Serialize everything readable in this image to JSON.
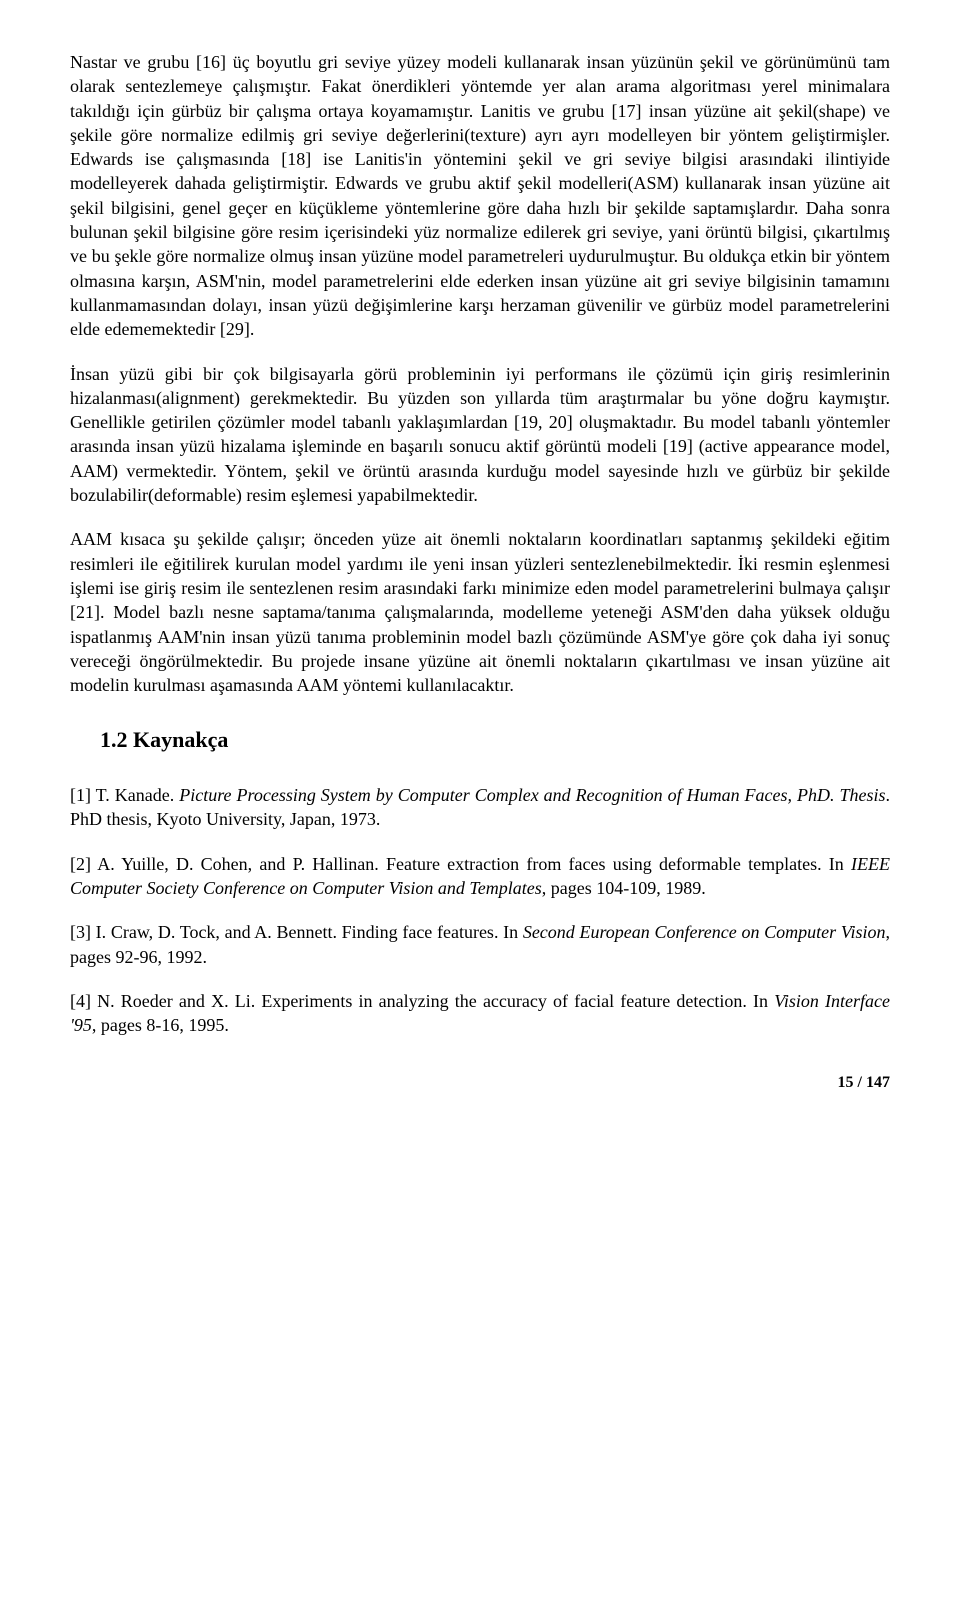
{
  "paragraphs": {
    "p1": "Nastar ve grubu [16] üç boyutlu gri seviye yüzey modeli kullanarak insan yüzünün şekil ve görünümünü tam olarak sentezlemeye çalışmıştır. Fakat önerdikleri yöntemde yer alan arama algoritması yerel minimalara takıldığı için gürbüz bir çalışma ortaya koyamamıştır. Lanitis ve grubu [17] insan yüzüne ait şekil(shape) ve şekile göre normalize edilmiş gri seviye değerlerini(texture) ayrı ayrı modelleyen bir yöntem geliştirmişler. Edwards ise çalışmasında [18] ise Lanitis'in yöntemini şekil ve gri seviye bilgisi arasındaki ilintiyide modelleyerek dahada geliştirmiştir. Edwards ve grubu aktif şekil modelleri(ASM) kullanarak insan yüzüne ait şekil bilgisini, genel geçer en küçükleme yöntemlerine göre daha hızlı bir şekilde saptamışlardır. Daha sonra bulunan şekil bilgisine göre resim içerisindeki yüz normalize edilerek gri seviye, yani örüntü bilgisi, çıkartılmış ve bu şekle göre normalize olmuş insan yüzüne model parametreleri uydurulmuştur. Bu oldukça etkin bir yöntem olmasına karşın, ASM'nin, model parametrelerini elde ederken insan yüzüne ait gri seviye bilgisinin tamamını kullanmamasından dolayı, insan yüzü değişimlerine karşı herzaman güvenilir ve gürbüz model parametrelerini elde edememektedir [29].",
    "p2": "İnsan yüzü gibi bir çok bilgisayarla görü probleminin iyi performans ile çözümü için giriş resimlerinin hizalanması(alignment) gerekmektedir. Bu yüzden son yıllarda tüm araştırmalar bu yöne doğru kaymıştır. Genellikle getirilen çözümler model tabanlı yaklaşımlardan [19, 20] oluşmaktadır. Bu model tabanlı yöntemler arasında insan yüzü hizalama işleminde en başarılı sonucu aktif görüntü modeli [19] (active appearance model, AAM) vermektedir. Yöntem, şekil ve örüntü arasında kurduğu model sayesinde hızlı ve gürbüz bir şekilde bozulabilir(deformable) resim eşlemesi yapabilmektedir.",
    "p3": "AAM kısaca şu şekilde çalışır; önceden yüze ait önemli noktaların koordinatları saptanmış şekildeki eğitim resimleri ile eğitilirek kurulan model yardımı ile yeni insan yüzleri sentezlenebilmektedir. İki resmin eşlenmesi işlemi ise giriş resim ile sentezlenen resim arasındaki farkı minimize eden model parametrelerini bulmaya çalışır [21]. Model bazlı nesne saptama/tanıma çalışmalarında, modelleme yeteneği ASM'den daha yüksek olduğu ispatlanmış AAM'nin insan yüzü tanıma probleminin model bazlı çözümünde ASM'ye göre çok daha iyi sonuç vereceği öngörülmektedir. Bu projede insane yüzüne ait önemli noktaların çıkartılması ve insan yüzüne ait modelin kurulması aşamasında AAM yöntemi kullanılacaktır."
  },
  "heading": "1.2  Kaynakça",
  "refs": {
    "r1_a": "[1] T. Kanade. ",
    "r1_i": "Picture Processing System by Computer Complex and Recognition of Human Faces, PhD. Thesis",
    "r1_b": ". PhD thesis, Kyoto University, Japan, 1973.",
    "r2_a": "[2] A. Yuille, D. Cohen, and P. Hallinan. Feature extraction from faces using deformable templates. In ",
    "r2_i": "IEEE Computer Society Conference on Computer Vision and Templates",
    "r2_b": ", pages 104-109, 1989.",
    "r3_a": "[3] I. Craw, D. Tock, and A. Bennett. Finding face features. In ",
    "r3_i": "Second European Conference on Computer Vision",
    "r3_b": ", pages 92-96, 1992.",
    "r4_a": "[4] N. Roeder and X. Li. Experiments in analyzing the accuracy of facial feature detection. In ",
    "r4_i": "Vision Interface '95",
    "r4_b": ", pages 8-16, 1995."
  },
  "page_number": "15 / 147"
}
